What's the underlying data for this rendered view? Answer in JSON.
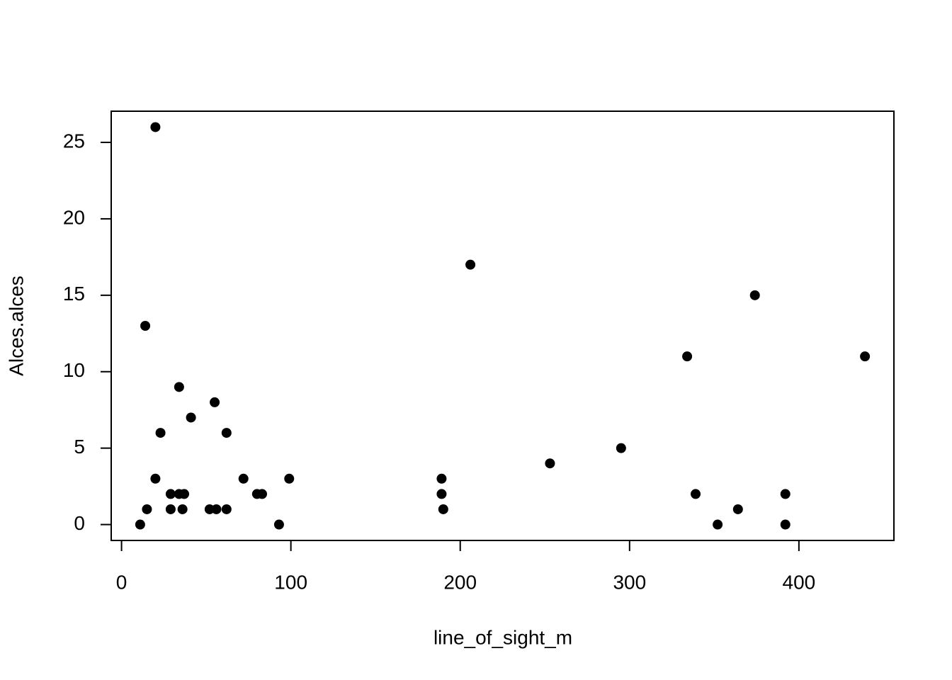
{
  "chart_data": {
    "type": "scatter",
    "x_label": "line_of_sight_m",
    "y_label": "Alces.alces",
    "color": "#000000",
    "x": [
      11,
      20,
      14,
      15,
      20,
      23,
      29,
      29,
      34,
      34,
      36,
      37,
      41,
      52,
      55,
      56,
      62,
      62,
      72,
      80,
      83,
      93,
      99,
      189,
      189,
      190,
      206,
      253,
      295,
      334,
      339,
      352,
      364,
      374,
      392,
      392,
      439
    ],
    "values": [
      0,
      26,
      13,
      1,
      3,
      6,
      2,
      1,
      9,
      2,
      1,
      2,
      7,
      1,
      8,
      1,
      6,
      1,
      3,
      2,
      2,
      0,
      3,
      3,
      2,
      1,
      17,
      4,
      5,
      11,
      2,
      0,
      1,
      15,
      2,
      0,
      11
    ],
    "xlim": [
      -6.1,
      456.1
    ],
    "ylim": [
      -1.04,
      27.04
    ],
    "xticks": [
      0,
      100,
      200,
      300,
      400
    ],
    "yticks": [
      0,
      5,
      10,
      15,
      20,
      25
    ]
  }
}
